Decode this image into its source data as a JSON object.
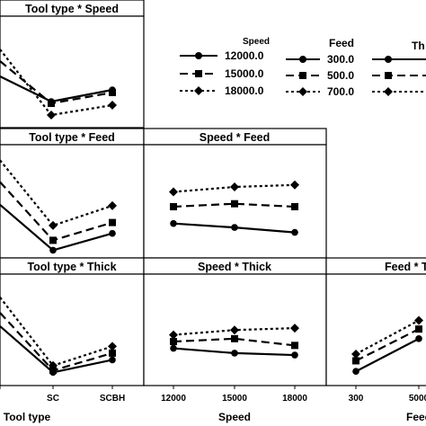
{
  "figure": {
    "legends": [
      {
        "title": "Speed",
        "entries": [
          "12000.0",
          "15000.0",
          "18000.0"
        ]
      },
      {
        "title": "Feed",
        "entries": [
          "300.0",
          "500.0",
          "700.0"
        ]
      },
      {
        "title": "Th",
        "entries": [
          "",
          "",
          ""
        ]
      }
    ],
    "axis_labels": [
      "Tool type",
      "Speed",
      "Feed"
    ]
  },
  "chart_data": [
    {
      "type": "line",
      "title": "Tool type * Speed",
      "categories": [
        "",
        "SC",
        "SCBH"
      ],
      "series": [
        {
          "name": "12000.0",
          "values": [
            0.55,
            0.27,
            0.4
          ]
        },
        {
          "name": "15000.0",
          "values": [
            0.72,
            0.25,
            0.37
          ]
        },
        {
          "name": "18000.0",
          "values": [
            0.85,
            0.12,
            0.23
          ]
        }
      ]
    },
    {
      "type": "line",
      "title": "Tool type * Feed",
      "categories": [
        "",
        "SC",
        "SCBH"
      ],
      "series": [
        {
          "name": "300.0",
          "values": [
            0.52,
            0.06,
            0.23
          ]
        },
        {
          "name": "500.0",
          "values": [
            0.75,
            0.16,
            0.34
          ]
        },
        {
          "name": "700.0",
          "values": [
            0.97,
            0.31,
            0.51
          ]
        }
      ]
    },
    {
      "type": "line",
      "title": "Speed * Feed",
      "categories": [
        "12000",
        "15000",
        "18000"
      ],
      "series": [
        {
          "name": "300.0",
          "values": [
            0.33,
            0.29,
            0.24
          ]
        },
        {
          "name": "500.0",
          "values": [
            0.5,
            0.53,
            0.5
          ]
        },
        {
          "name": "700.0",
          "values": [
            0.65,
            0.7,
            0.72
          ]
        }
      ]
    },
    {
      "type": "line",
      "title": "Tool type * Thick",
      "categories": [
        "",
        "SC",
        "SCBH"
      ],
      "series": [
        {
          "name": "",
          "values": [
            0.58,
            0.1,
            0.23
          ]
        },
        {
          "name": "",
          "values": [
            0.72,
            0.12,
            0.3
          ]
        },
        {
          "name": "",
          "values": [
            0.88,
            0.17,
            0.37
          ]
        }
      ]
    },
    {
      "type": "line",
      "title": "Speed * Thick",
      "categories": [
        "12000",
        "15000",
        "18000"
      ],
      "series": [
        {
          "name": "",
          "values": [
            0.35,
            0.3,
            0.28
          ]
        },
        {
          "name": "",
          "values": [
            0.42,
            0.45,
            0.38
          ]
        },
        {
          "name": "",
          "values": [
            0.49,
            0.54,
            0.56
          ]
        }
      ]
    },
    {
      "type": "line",
      "title": "Feed * T",
      "categories": [
        "300",
        "5000"
      ],
      "series": [
        {
          "name": "",
          "values": [
            0.11,
            0.45
          ]
        },
        {
          "name": "",
          "values": [
            0.22,
            0.55
          ]
        },
        {
          "name": "",
          "values": [
            0.29,
            0.64
          ]
        }
      ]
    }
  ]
}
